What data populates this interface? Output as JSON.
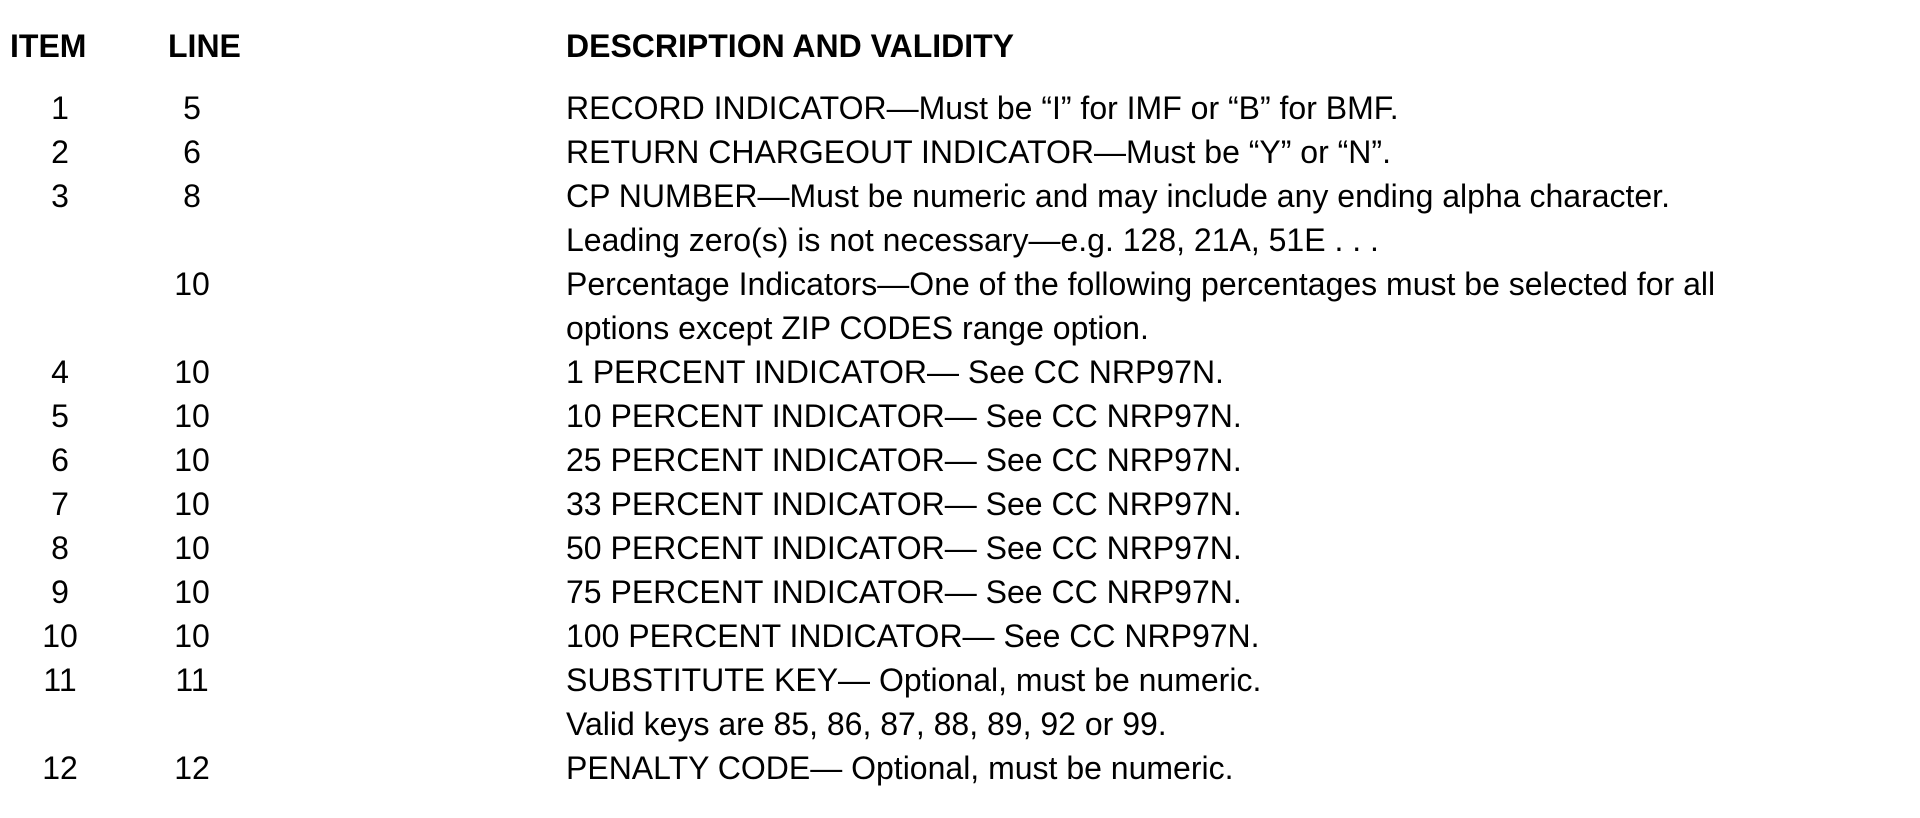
{
  "header": {
    "item": "ITEM",
    "line": "LINE",
    "description": "DESCRIPTION AND VALIDITY"
  },
  "rows": [
    {
      "item": "1",
      "line": "5",
      "description": [
        "RECORD INDICATOR—Must be “I” for IMF or “B” for BMF."
      ]
    },
    {
      "item": "2",
      "line": "6",
      "description": [
        "RETURN CHARGEOUT INDICATOR—Must be “Y” or “N”."
      ]
    },
    {
      "item": "3",
      "line": "8",
      "description": [
        "CP NUMBER—Must be numeric and may include any ending alpha character.",
        "Leading zero(s) is not necessary—e.g. 128, 21A, 51E . . ."
      ]
    },
    {
      "item": "",
      "line": "10",
      "description": [
        "Percentage Indicators—One of the following percentages must be selected for all",
        "options except ZIP CODES range option."
      ]
    },
    {
      "item": "4",
      "line": "10",
      "description": [
        "1 PERCENT INDICATOR— See CC NRP97N."
      ]
    },
    {
      "item": "5",
      "line": "10",
      "description": [
        "10 PERCENT INDICATOR— See CC NRP97N."
      ]
    },
    {
      "item": "6",
      "line": "10",
      "description": [
        "25 PERCENT INDICATOR— See CC NRP97N."
      ]
    },
    {
      "item": "7",
      "line": "10",
      "description": [
        "33 PERCENT INDICATOR— See CC NRP97N."
      ]
    },
    {
      "item": "8",
      "line": "10",
      "description": [
        "50 PERCENT INDICATOR— See CC NRP97N."
      ]
    },
    {
      "item": "9",
      "line": "10",
      "description": [
        "75 PERCENT INDICATOR— See CC NRP97N."
      ]
    },
    {
      "item": "10",
      "line": "10",
      "description": [
        "100 PERCENT INDICATOR— See CC NRP97N."
      ]
    },
    {
      "item": "11",
      "line": "11",
      "description": [
        "SUBSTITUTE KEY— Optional, must be numeric.",
        "Valid keys are 85, 86, 87, 88, 89, 92 or 99."
      ]
    },
    {
      "item": "12",
      "line": "12",
      "description": [
        "PENALTY CODE— Optional, must be numeric."
      ]
    }
  ]
}
